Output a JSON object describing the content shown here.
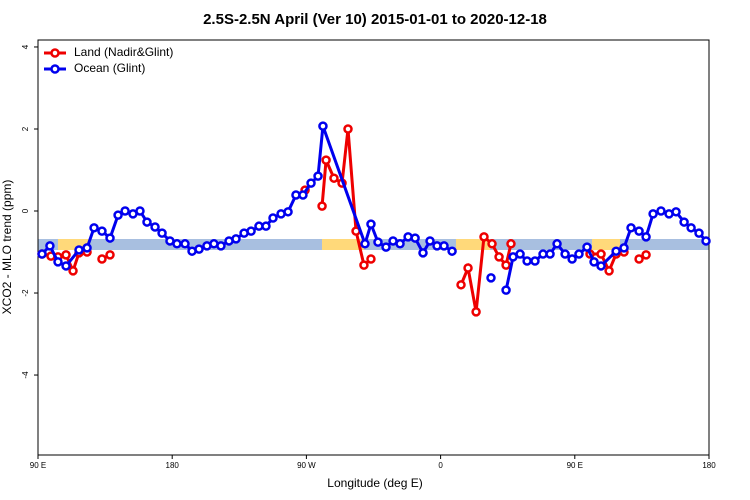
{
  "chart_data": {
    "type": "line",
    "title": "2.5S-2.5N April (Ver 10)   2015-01-01 to 2020-12-18",
    "x_label": "Longitude (deg E)",
    "y_label": "XCO2 - MLO trend (ppm)",
    "xlim": [
      90,
      540
    ],
    "xticks": [
      {
        "value": 90,
        "label": "90 E"
      },
      180,
      {
        "value": 270,
        "label": "90 W"
      },
      {
        "value": 360,
        "label": "0"
      },
      {
        "value": 450,
        "label": "90 E"
      },
      {
        "value": 540,
        "label": "180"
      }
    ],
    "ylim": [
      -5.95,
      4.17
    ],
    "yticks": [
      4,
      2,
      0,
      -2,
      -4
    ],
    "legend": "top-left",
    "series": [
      {
        "name": "Land (Nadir&Glint)",
        "color": "#ee0000",
        "x": [
          92.7,
          98.7,
          103.4,
          108.8,
          113.5,
          117.5,
          122.9,
          null,
          132.9,
          138.3,
          null,
          269.1,
          null,
          280.5,
          283.2,
          288.5,
          293.9,
          297.9,
          303.3,
          308.6,
          313.3,
          null,
          373.7,
          378.4,
          383.8,
          389.1,
          394.5,
          399.2,
          403.9,
          407.2,
          null,
          460.2,
          467.6,
          473.0,
          477.7,
          483.0,
          null,
          493.1,
          497.8
        ],
        "values": [
          -1.05,
          -1.1,
          -1.12,
          -1.07,
          -1.46,
          -1.02,
          -1.0,
          null,
          -1.17,
          -1.07,
          null,
          0.51,
          null,
          0.12,
          1.24,
          0.8,
          0.68,
          2.0,
          -0.49,
          -1.32,
          -1.17,
          null,
          -1.8,
          -1.39,
          -2.46,
          -0.63,
          -0.8,
          -1.12,
          -1.32,
          -0.8,
          null,
          -1.05,
          -1.05,
          -1.46,
          -1.05,
          -1.0,
          null,
          -1.17,
          -1.07
        ]
      },
      {
        "name": "Ocean (Glint)",
        "color": "#0000ee",
        "x": [
          92.7,
          98.0,
          103.4,
          108.8,
          117.5,
          122.9,
          127.6,
          132.9,
          138.3,
          143.7,
          148.4,
          153.7,
          158.4,
          163.1,
          168.5,
          173.2,
          178.5,
          183.2,
          188.6,
          193.3,
          198.0,
          203.3,
          208.0,
          212.7,
          218.1,
          222.8,
          228.2,
          232.9,
          238.2,
          242.9,
          247.6,
          253.0,
          257.7,
          263.0,
          267.7,
          273.1,
          277.8,
          281.1,
          309.3,
          313.3,
          318.0,
          323.4,
          328.1,
          332.8,
          338.2,
          342.9,
          348.2,
          352.9,
          357.6,
          362.3,
          367.7,
          null,
          393.8,
          null,
          403.9,
          408.6,
          413.3,
          418.0,
          423.3,
          428.7,
          433.4,
          438.1,
          443.5,
          448.2,
          452.8,
          458.2,
          462.9,
          467.6,
          477.7,
          483.0,
          487.7,
          493.1,
          497.8,
          502.5,
          507.8,
          513.2,
          517.9,
          523.3,
          528.0,
          533.3,
          538.0
        ],
        "values": [
          -1.05,
          -0.85,
          -1.24,
          -1.34,
          -0.95,
          -0.9,
          -0.41,
          -0.49,
          -0.66,
          -0.1,
          0,
          -0.07,
          0,
          -0.27,
          -0.39,
          -0.54,
          -0.73,
          -0.8,
          -0.8,
          -0.98,
          -0.93,
          -0.85,
          -0.8,
          -0.85,
          -0.73,
          -0.68,
          -0.54,
          -0.49,
          -0.37,
          -0.37,
          -0.17,
          -0.07,
          -0.02,
          0.39,
          0.39,
          0.68,
          0.85,
          2.07,
          -0.8,
          -0.32,
          -0.76,
          -0.88,
          -0.73,
          -0.8,
          -0.63,
          -0.66,
          -1.02,
          -0.73,
          -0.85,
          -0.85,
          -0.98,
          null,
          -1.63,
          null,
          -1.93,
          -1.12,
          -1.05,
          -1.22,
          -1.22,
          -1.05,
          -1.05,
          -0.8,
          -1.05,
          -1.17,
          -1.05,
          -0.88,
          -1.24,
          -1.34,
          -0.98,
          -0.9,
          -0.41,
          -0.49,
          -0.63,
          -0.07,
          0,
          -0.07,
          -0.02,
          -0.27,
          -0.41,
          -0.54,
          -0.73
        ]
      }
    ]
  }
}
